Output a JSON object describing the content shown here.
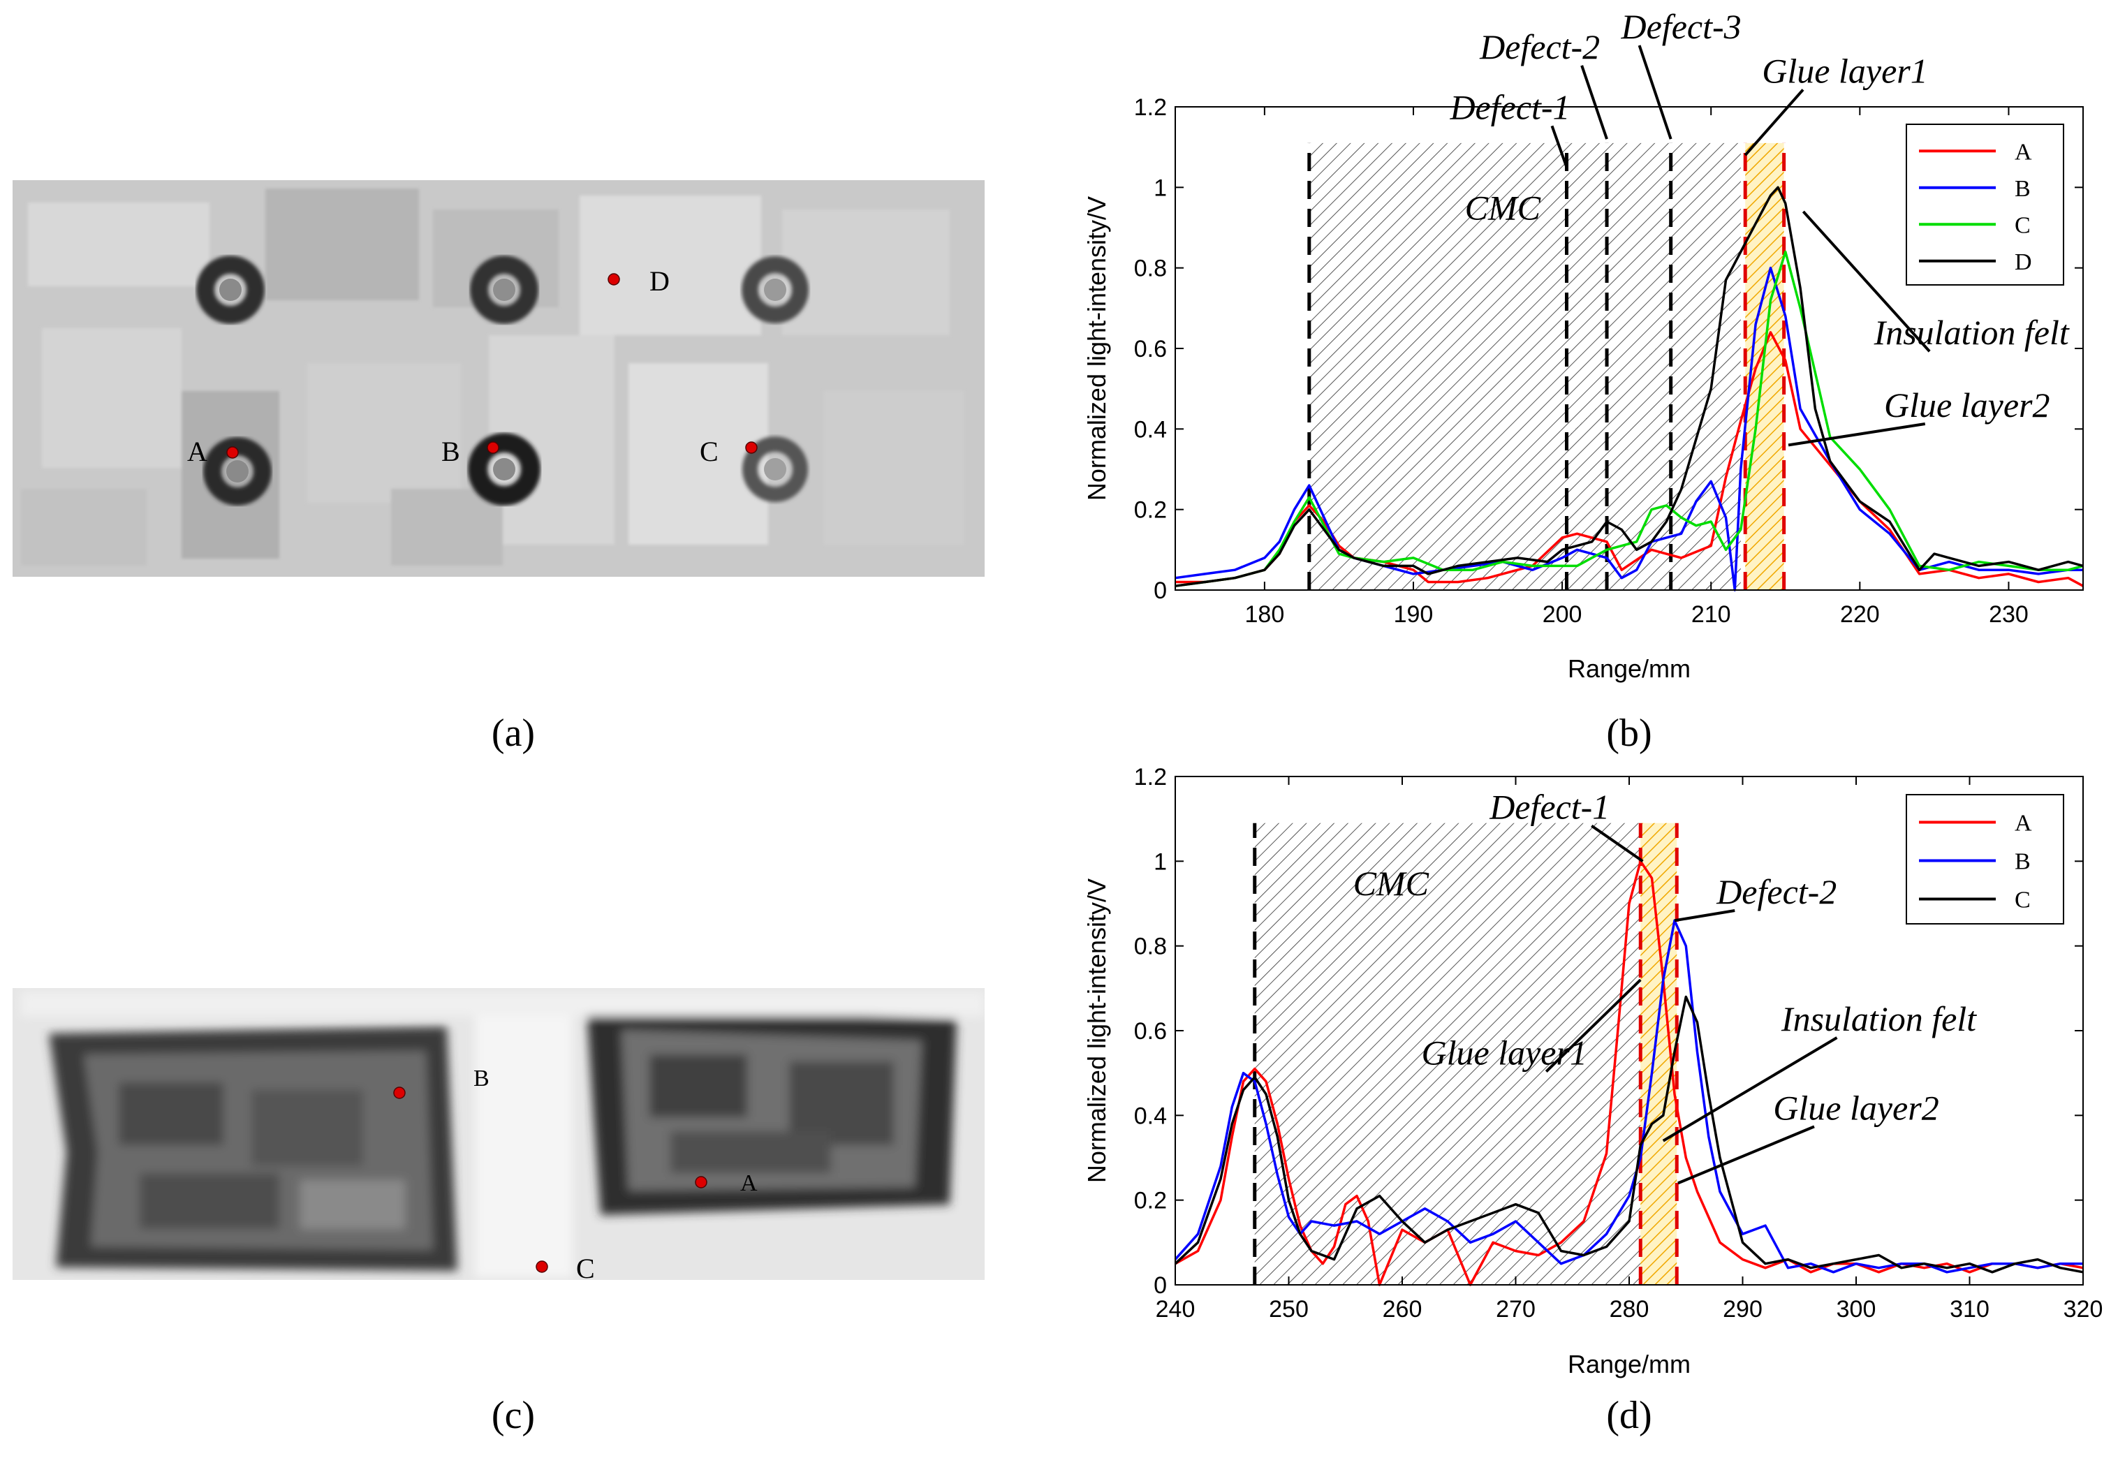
{
  "panels": {
    "a": {
      "caption": "(a)",
      "points": [
        {
          "label": "A"
        },
        {
          "label": "B"
        },
        {
          "label": "C"
        },
        {
          "label": "D"
        }
      ]
    },
    "c": {
      "caption": "(c)",
      "points": [
        {
          "label": "B"
        },
        {
          "label": "A"
        },
        {
          "label": "C"
        }
      ]
    }
  },
  "colors": {
    "A": "#ff0000",
    "B": "#0000ff",
    "C": "#00dd00",
    "D": "#000000",
    "point": "#dd0000"
  },
  "chart_data": [
    {
      "id": "b",
      "type": "line",
      "caption": "(b)",
      "xlabel": "Range/mm",
      "ylabel": "Normalized light-intensity/V",
      "xlim": [
        174,
        235
      ],
      "ylim": [
        0,
        1.2
      ],
      "xticks": [
        180,
        190,
        200,
        210,
        220,
        230
      ],
      "yticks": [
        0,
        0.2,
        0.4,
        0.6,
        0.8,
        1,
        1.2
      ],
      "legend": [
        "A",
        "B",
        "C",
        "D"
      ],
      "legend_position": "top-right",
      "region_cmc": [
        183,
        212
      ],
      "region_glue": [
        212.3,
        214.9
      ],
      "region_top": 1.11,
      "vlines": [
        {
          "x": 183,
          "color": "black"
        },
        {
          "x": 200.3,
          "color": "black"
        },
        {
          "x": 203,
          "color": "black"
        },
        {
          "x": 207.3,
          "color": "black"
        },
        {
          "x": 212.3,
          "color": "red"
        },
        {
          "x": 214.9,
          "color": "red"
        }
      ],
      "annotations": [
        {
          "text": "CMC",
          "x": 196,
          "y": 0.92
        },
        {
          "text": "Defect-1",
          "x": 196.5,
          "y": 1.17,
          "tx": 200.3,
          "ty": 1.05
        },
        {
          "text": "Defect-2",
          "x": 198.5,
          "y": 1.32,
          "tx": 203,
          "ty": 1.12
        },
        {
          "text": "Defect-3",
          "x": 208,
          "y": 1.37,
          "tx": 207.3,
          "ty": 1.12
        },
        {
          "text": "Glue layer1",
          "x": 219,
          "y": 1.26,
          "tx": 212.3,
          "ty": 1.08
        },
        {
          "text": "Insulation felt",
          "x": 227.5,
          "y": 0.61,
          "tx": 216.2,
          "ty": 0.94
        },
        {
          "text": "Glue layer2",
          "x": 227.2,
          "y": 0.43,
          "tx": 215.2,
          "ty": 0.36
        }
      ],
      "series": [
        {
          "name": "A",
          "color": "#ff0000",
          "x": [
            174,
            176,
            178,
            180,
            181,
            182,
            183,
            184,
            185,
            186,
            188,
            190,
            191,
            193,
            195,
            198,
            200,
            201,
            203,
            204,
            206,
            208,
            210,
            211,
            212,
            213,
            214,
            215,
            216,
            218,
            220,
            222,
            224,
            226,
            228,
            230,
            232,
            234,
            235
          ],
          "y": [
            0.02,
            0.02,
            0.03,
            0.05,
            0.09,
            0.17,
            0.21,
            0.17,
            0.11,
            0.08,
            0.07,
            0.05,
            0.02,
            0.02,
            0.03,
            0.06,
            0.13,
            0.14,
            0.12,
            0.05,
            0.1,
            0.08,
            0.11,
            0.28,
            0.42,
            0.55,
            0.64,
            0.57,
            0.4,
            0.31,
            0.22,
            0.15,
            0.04,
            0.05,
            0.03,
            0.04,
            0.02,
            0.03,
            0.01
          ]
        },
        {
          "name": "B",
          "color": "#0000ff",
          "x": [
            174,
            176,
            178,
            180,
            181,
            182,
            183,
            184,
            185,
            186,
            188,
            190,
            192,
            194,
            196,
            198,
            200,
            201,
            203,
            204,
            205,
            206,
            208,
            209,
            210,
            211,
            211.6,
            212,
            213,
            214,
            215,
            216,
            218,
            220,
            222,
            224,
            226,
            228,
            230,
            232,
            234,
            235
          ],
          "y": [
            0.03,
            0.04,
            0.05,
            0.08,
            0.12,
            0.2,
            0.26,
            0.18,
            0.1,
            0.08,
            0.06,
            0.04,
            0.05,
            0.06,
            0.07,
            0.05,
            0.08,
            0.1,
            0.08,
            0.03,
            0.05,
            0.12,
            0.14,
            0.22,
            0.27,
            0.18,
            0.0,
            0.3,
            0.66,
            0.8,
            0.68,
            0.45,
            0.32,
            0.2,
            0.14,
            0.05,
            0.07,
            0.05,
            0.05,
            0.04,
            0.05,
            0.05
          ]
        },
        {
          "name": "C",
          "color": "#00dd00",
          "x": [
            174,
            176,
            178,
            180,
            181,
            182,
            183,
            184,
            185,
            186,
            188,
            190,
            192,
            194,
            196,
            198,
            200,
            201,
            203,
            205,
            206,
            207,
            208,
            209,
            210,
            211,
            212,
            213,
            214,
            215,
            216,
            218,
            220,
            222,
            224,
            226,
            228,
            230,
            232,
            234,
            235
          ],
          "y": [
            0.01,
            0.02,
            0.03,
            0.05,
            0.1,
            0.17,
            0.23,
            0.16,
            0.09,
            0.08,
            0.07,
            0.08,
            0.05,
            0.05,
            0.07,
            0.06,
            0.06,
            0.06,
            0.1,
            0.12,
            0.2,
            0.21,
            0.18,
            0.16,
            0.17,
            0.1,
            0.15,
            0.4,
            0.72,
            0.84,
            0.7,
            0.38,
            0.3,
            0.2,
            0.06,
            0.05,
            0.07,
            0.06,
            0.05,
            0.05,
            0.06
          ]
        },
        {
          "name": "D",
          "color": "#000000",
          "x": [
            174,
            176,
            178,
            180,
            181,
            182,
            183,
            184,
            185,
            186,
            188,
            190,
            191,
            193,
            195,
            197,
            199,
            200,
            202,
            203,
            204,
            205,
            206,
            207,
            208,
            210,
            211,
            212,
            213,
            214,
            214.5,
            215,
            216,
            217,
            218,
            220,
            222,
            224,
            225,
            226,
            228,
            230,
            232,
            234,
            235
          ],
          "y": [
            0.01,
            0.02,
            0.03,
            0.05,
            0.09,
            0.16,
            0.2,
            0.15,
            0.1,
            0.08,
            0.06,
            0.06,
            0.04,
            0.06,
            0.07,
            0.08,
            0.07,
            0.1,
            0.12,
            0.17,
            0.15,
            0.1,
            0.12,
            0.17,
            0.25,
            0.5,
            0.77,
            0.84,
            0.91,
            0.98,
            1.0,
            0.96,
            0.75,
            0.45,
            0.32,
            0.22,
            0.17,
            0.05,
            0.09,
            0.08,
            0.06,
            0.07,
            0.05,
            0.07,
            0.06
          ]
        }
      ]
    },
    {
      "id": "d",
      "type": "line",
      "caption": "(d)",
      "xlabel": "Range/mm",
      "ylabel": "Normalized light-intensity/V",
      "xlim": [
        240,
        320
      ],
      "ylim": [
        0,
        1.2
      ],
      "xticks": [
        240,
        250,
        260,
        270,
        280,
        290,
        300,
        310,
        320
      ],
      "yticks": [
        0,
        0.2,
        0.4,
        0.6,
        0.8,
        1,
        1.2
      ],
      "legend": [
        "A",
        "B",
        "C"
      ],
      "legend_position": "top-right",
      "region_cmc": [
        247,
        281
      ],
      "region_glue": [
        281,
        284.2
      ],
      "region_top": 1.09,
      "vlines": [
        {
          "x": 247,
          "color": "black"
        },
        {
          "x": 281,
          "color": "red"
        },
        {
          "x": 284.2,
          "color": "red"
        }
      ],
      "annotations": [
        {
          "text": "CMC",
          "x": 259,
          "y": 0.92
        },
        {
          "text": "Defect-1",
          "x": 273,
          "y": 1.1,
          "tx": 281.2,
          "ty": 1.0
        },
        {
          "text": "Defect-2",
          "x": 293,
          "y": 0.9,
          "tx": 284,
          "ty": 0.86
        },
        {
          "text": "Glue layer1",
          "x": 269,
          "y": 0.52,
          "tx": 281,
          "ty": 0.72
        },
        {
          "text": "Insulation felt",
          "x": 302,
          "y": 0.6,
          "tx": 283,
          "ty": 0.34
        },
        {
          "text": "Glue layer2",
          "x": 300,
          "y": 0.39,
          "tx": 284.3,
          "ty": 0.24
        }
      ],
      "series": [
        {
          "name": "A",
          "color": "#ff0000",
          "x": [
            240,
            242,
            244,
            245,
            246,
            247,
            248,
            249,
            250,
            251,
            252,
            253,
            254,
            255,
            256,
            257,
            258,
            260,
            262,
            264,
            266,
            268,
            270,
            272,
            274,
            276,
            278,
            279,
            280,
            281,
            282,
            283,
            284,
            285,
            286,
            288,
            290,
            292,
            294,
            296,
            298,
            300,
            302,
            304,
            306,
            308,
            310,
            312,
            314,
            316,
            318,
            320
          ],
          "y": [
            0.05,
            0.08,
            0.2,
            0.35,
            0.48,
            0.51,
            0.48,
            0.38,
            0.25,
            0.14,
            0.08,
            0.05,
            0.09,
            0.19,
            0.21,
            0.15,
            0.0,
            0.13,
            0.1,
            0.13,
            0.0,
            0.1,
            0.08,
            0.07,
            0.1,
            0.15,
            0.31,
            0.6,
            0.9,
            1.0,
            0.96,
            0.72,
            0.45,
            0.3,
            0.22,
            0.1,
            0.06,
            0.04,
            0.06,
            0.03,
            0.05,
            0.05,
            0.03,
            0.05,
            0.04,
            0.05,
            0.03,
            0.05,
            0.05,
            0.04,
            0.05,
            0.04
          ]
        },
        {
          "name": "B",
          "color": "#0000ff",
          "x": [
            240,
            242,
            244,
            245,
            246,
            247,
            248,
            249,
            250,
            251,
            252,
            254,
            256,
            258,
            260,
            262,
            264,
            266,
            268,
            270,
            272,
            274,
            276,
            278,
            280,
            281,
            282,
            283,
            284,
            285,
            286,
            287,
            288,
            290,
            292,
            294,
            296,
            298,
            300,
            302,
            304,
            306,
            308,
            310,
            312,
            314,
            316,
            318,
            320
          ],
          "y": [
            0.06,
            0.12,
            0.28,
            0.42,
            0.5,
            0.48,
            0.38,
            0.26,
            0.16,
            0.12,
            0.15,
            0.14,
            0.15,
            0.12,
            0.15,
            0.18,
            0.15,
            0.1,
            0.12,
            0.15,
            0.1,
            0.05,
            0.07,
            0.12,
            0.21,
            0.3,
            0.5,
            0.72,
            0.86,
            0.8,
            0.55,
            0.35,
            0.22,
            0.12,
            0.14,
            0.04,
            0.05,
            0.03,
            0.05,
            0.04,
            0.05,
            0.05,
            0.03,
            0.04,
            0.05,
            0.05,
            0.04,
            0.05,
            0.05
          ]
        },
        {
          "name": "C",
          "color": "#000000",
          "x": [
            240,
            242,
            244,
            245,
            246,
            247,
            248,
            249,
            250,
            251,
            252,
            254,
            256,
            258,
            260,
            262,
            264,
            266,
            268,
            270,
            272,
            274,
            276,
            278,
            280,
            281,
            282,
            283,
            284,
            285,
            286,
            287,
            288,
            290,
            292,
            294,
            296,
            298,
            300,
            302,
            304,
            306,
            308,
            310,
            312,
            314,
            316,
            318,
            320
          ],
          "y": [
            0.05,
            0.1,
            0.25,
            0.38,
            0.46,
            0.49,
            0.45,
            0.35,
            0.2,
            0.12,
            0.08,
            0.06,
            0.18,
            0.21,
            0.15,
            0.1,
            0.13,
            0.15,
            0.17,
            0.19,
            0.17,
            0.08,
            0.07,
            0.09,
            0.15,
            0.33,
            0.38,
            0.4,
            0.55,
            0.68,
            0.62,
            0.45,
            0.3,
            0.1,
            0.05,
            0.06,
            0.04,
            0.05,
            0.06,
            0.07,
            0.04,
            0.05,
            0.04,
            0.05,
            0.03,
            0.05,
            0.06,
            0.04,
            0.03
          ]
        }
      ]
    }
  ]
}
